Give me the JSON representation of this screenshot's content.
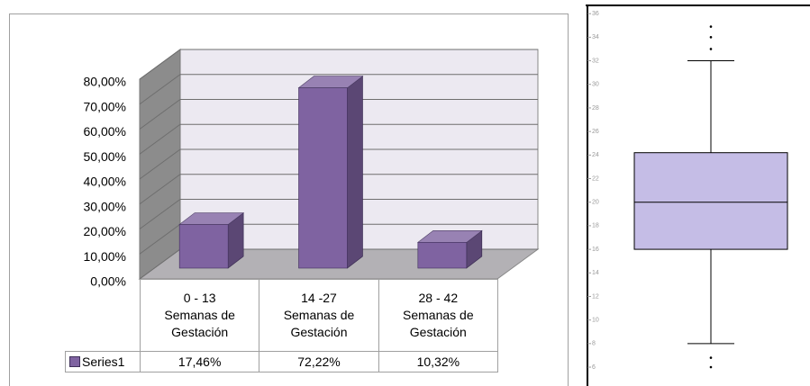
{
  "chart_data": [
    {
      "type": "bar3d",
      "categories": [
        "0 - 13\nSemanas de\nGestación",
        "14 -27\nSemanas de\nGestación",
        "28 - 42\nSemanas de\nGestación"
      ],
      "series": [
        {
          "name": "Series1",
          "color": "#7f63a1",
          "values": [
            17.46,
            72.22,
            10.32
          ],
          "value_labels": [
            "17,46%",
            "72,22%",
            "10,32%"
          ]
        }
      ],
      "ylim": [
        0,
        80
      ],
      "yticks": [
        {
          "value": 0,
          "label": "0,00%"
        },
        {
          "value": 10,
          "label": "10,00%"
        },
        {
          "value": 20,
          "label": "20,00%"
        },
        {
          "value": 30,
          "label": "30,00%"
        },
        {
          "value": 40,
          "label": "40,00%"
        },
        {
          "value": 50,
          "label": "50,00%"
        },
        {
          "value": 60,
          "label": "60,00%"
        },
        {
          "value": 70,
          "label": "70,00%"
        },
        {
          "value": 80,
          "label": "80,00%"
        }
      ],
      "grid": true
    },
    {
      "type": "box",
      "color": "#c5bde6",
      "whisker_low": 8,
      "q1": 16,
      "median": 20,
      "q3": 24.2,
      "whisker_high": 32,
      "outliers": [
        34.9,
        34,
        33,
        6.8,
        6
      ],
      "ylim": [
        4.4,
        36.7
      ],
      "yticks": [
        6,
        8,
        10,
        12,
        14,
        16,
        18,
        20,
        22,
        24,
        26,
        28,
        30,
        32,
        34,
        36
      ]
    }
  ]
}
